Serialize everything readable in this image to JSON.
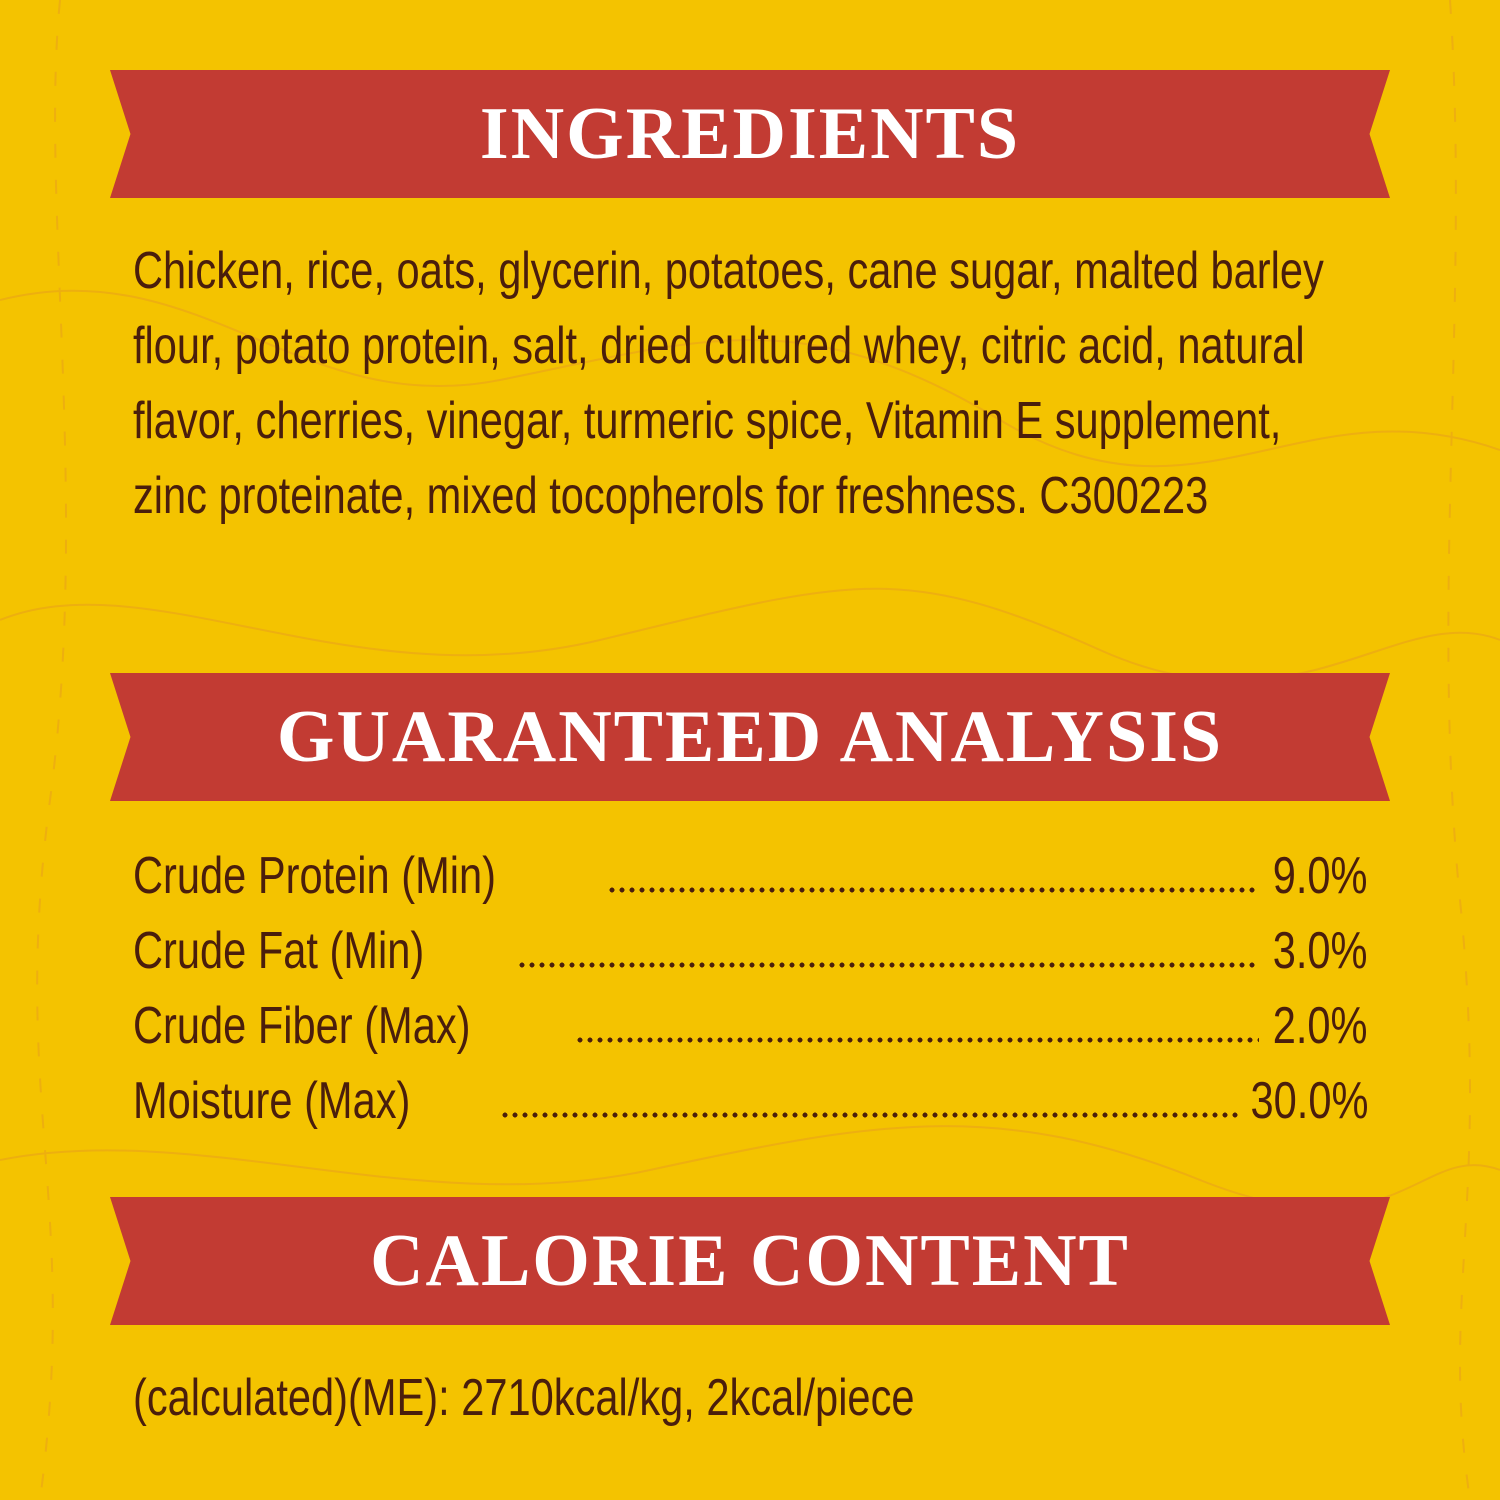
{
  "colors": {
    "background": "#F4C300",
    "banner": "#C23B33",
    "text": "#4A1E0C",
    "heading_text": "#FFFFFF"
  },
  "ingredients": {
    "title": "INGREDIENTS",
    "lines": [
      "Chicken, rice, oats, glycerin, potatoes, cane sugar, malted barley",
      "flour, potato protein, salt, dried cultured whey, citric acid, natural",
      "flavor, cherries, vinegar, turmeric spice, Vitamin E supplement,",
      "zinc proteinate, mixed tocopherols for freshness. C300223"
    ]
  },
  "analysis": {
    "title": "GUARANTEED ANALYSIS",
    "rows": [
      {
        "label": "Crude Protein (Min)",
        "value": "9.0%"
      },
      {
        "label": "Crude Fat (Min)",
        "value": "3.0%"
      },
      {
        "label": "Crude Fiber (Max)",
        "value": "2.0%"
      },
      {
        "label": "Moisture (Max)",
        "value": "30.0%"
      }
    ]
  },
  "calories": {
    "title": "CALORIE CONTENT",
    "text": "(calculated)(ME): 2710kcal/kg, 2kcal/piece"
  }
}
